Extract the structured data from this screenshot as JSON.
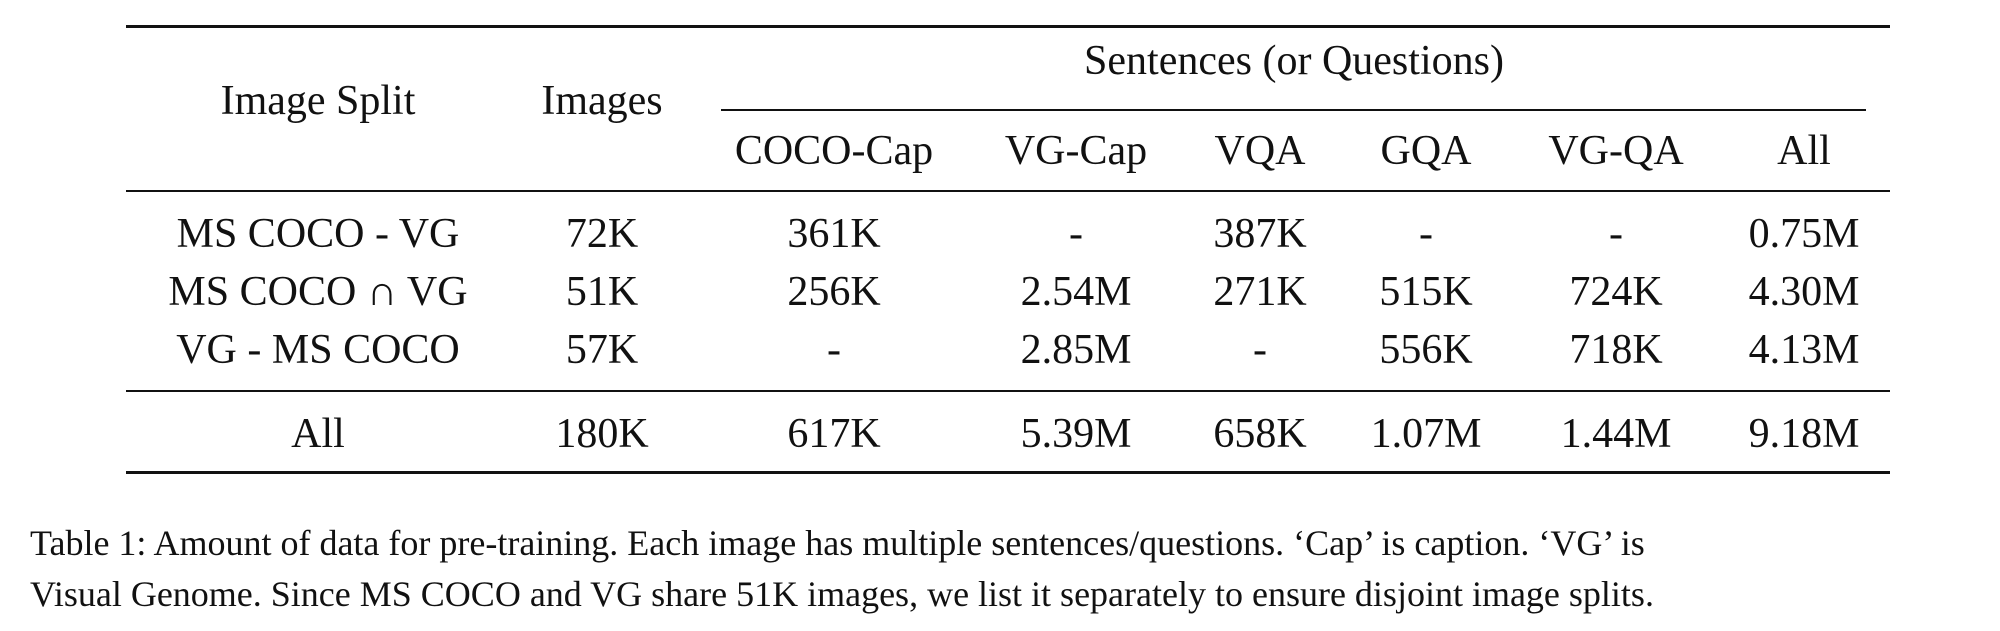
{
  "table": {
    "header": {
      "image_split": "Image Split",
      "images": "Images",
      "sentences_group": "Sentences (or Questions)",
      "sub_columns": [
        "COCO-Cap",
        "VG-Cap",
        "VQA",
        "GQA",
        "VG-QA",
        "All"
      ]
    },
    "rows": [
      {
        "split": "MS COCO - VG",
        "images": "72K",
        "values": [
          "361K",
          "-",
          "387K",
          "-",
          "-",
          "0.75M"
        ]
      },
      {
        "split": "MS COCO ∩ VG",
        "images": "51K",
        "values": [
          "256K",
          "2.54M",
          "271K",
          "515K",
          "724K",
          "4.30M"
        ]
      },
      {
        "split": "VG - MS COCO",
        "images": "57K",
        "values": [
          "-",
          "2.85M",
          "-",
          "556K",
          "718K",
          "4.13M"
        ]
      }
    ],
    "total_row": {
      "split": "All",
      "images": "180K",
      "values": [
        "617K",
        "5.39M",
        "658K",
        "1.07M",
        "1.44M",
        "9.18M"
      ]
    }
  },
  "caption": {
    "line1": "Table 1: Amount of data for pre-training. Each image has multiple sentences/questions. ‘Cap’ is caption. ‘VG’ is",
    "line2": "Visual Genome. Since MS COCO and VG share 51K images, we list it separately to ensure disjoint image splits."
  }
}
